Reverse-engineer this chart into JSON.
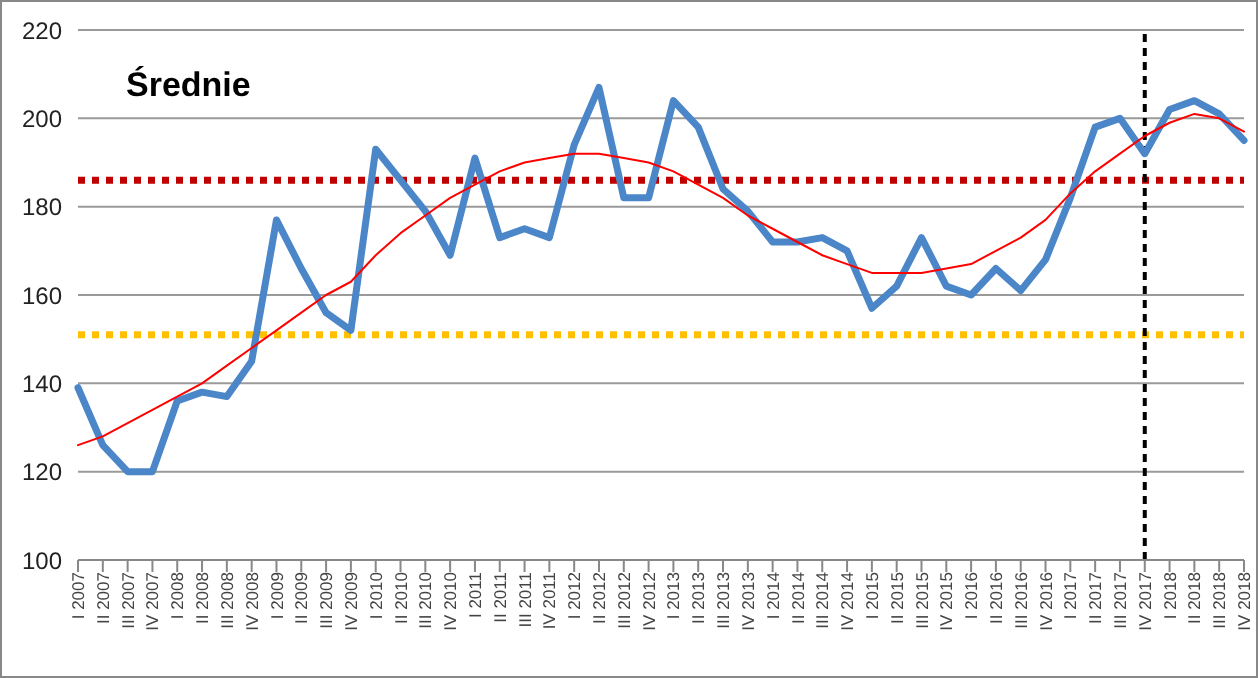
{
  "chart_data": {
    "type": "line",
    "title": "Średnie",
    "categories": [
      "I 2007",
      "II 2007",
      "III 2007",
      "IV 2007",
      "I 2008",
      "II 2008",
      "III 2008",
      "IV 2008",
      "I 2009",
      "II 2009",
      "III 2009",
      "IV 2009",
      "I 2010",
      "II 2010",
      "III 2010",
      "IV 2010",
      "I 2011",
      "II 2011",
      "III 2011",
      "IV 2011",
      "I 2012",
      "II 2012",
      "III 2012",
      "IV 2012",
      "I 2013",
      "II 2013",
      "III 2013",
      "IV 2013",
      "I 2014",
      "II 2014",
      "III 2014",
      "IV 2014",
      "I 2015",
      "II 2015",
      "III 2015",
      "IV 2015",
      "I 2016",
      "II 2016",
      "III 2016",
      "IV 2016",
      "I 2017",
      "II 2017",
      "III 2017",
      "IV 2017",
      "I 2018",
      "II 2018",
      "III 2018",
      "IV 2018"
    ],
    "series": [
      {
        "color": "#4a86c8",
        "line_style": "solid",
        "values": [
          139,
          126,
          120,
          120,
          136,
          138,
          137,
          145,
          177,
          166,
          156,
          152,
          193,
          186,
          179,
          169,
          191,
          173,
          175,
          173,
          194,
          207,
          182,
          182,
          204,
          198,
          184,
          179,
          172,
          172,
          173,
          170,
          157,
          162,
          173,
          162,
          160,
          166,
          161,
          168,
          182,
          198,
          200,
          192,
          202,
          204,
          201,
          195
        ]
      },
      {
        "color": "#ff0000",
        "line_style": "solid",
        "values": [
          126,
          128,
          131,
          134,
          137,
          140,
          144,
          148,
          152,
          156,
          160,
          163,
          169,
          174,
          178,
          182,
          185,
          188,
          190,
          191,
          192,
          192,
          191,
          190,
          188,
          185,
          182,
          178,
          175,
          172,
          169,
          167,
          165,
          165,
          165,
          166,
          167,
          170,
          173,
          177,
          183,
          188,
          192,
          196,
          199,
          201,
          200,
          197
        ]
      }
    ],
    "ylim": [
      100,
      220
    ],
    "yticks": [
      100,
      120,
      140,
      160,
      180,
      200,
      220
    ],
    "grid": "y",
    "legend": false,
    "marker": "none",
    "ref_lines": [
      {
        "axis": "y",
        "value": 186,
        "color": "#c00000",
        "line_style": "dotted"
      },
      {
        "axis": "y",
        "value": 151,
        "color": "#ffc000",
        "line_style": "dotted"
      },
      {
        "axis": "x",
        "value": "IV 2017",
        "color": "#000000",
        "line_style": "dashed"
      }
    ]
  }
}
